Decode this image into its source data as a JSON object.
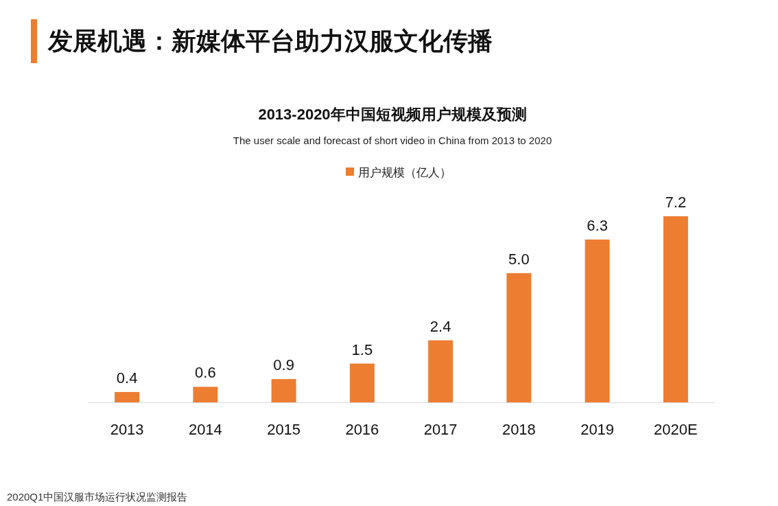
{
  "chart_data": {
    "type": "bar",
    "title": "2013-2020年中国短视频用户规模及预测",
    "subtitle": "The user scale and forecast of short video in China from 2013 to 2020",
    "categories": [
      "2013",
      "2014",
      "2015",
      "2016",
      "2017",
      "2018",
      "2019",
      "2020E"
    ],
    "series": [
      {
        "name": "用户规模（亿人）",
        "color": "#ed7d31",
        "values": [
          0.4,
          0.6,
          0.9,
          1.5,
          2.4,
          5.0,
          6.3,
          7.2
        ],
        "value_labels": [
          "0.4",
          "0.6",
          "0.9",
          "1.5",
          "2.4",
          "5.0",
          "6.3",
          "7.2"
        ]
      }
    ],
    "legend": "top",
    "annotations": [
      "发展机遇：新媒体平台助力汉服文化传播",
      "2020Q1中国汉服市场运行状况监测报告"
    ]
  }
}
